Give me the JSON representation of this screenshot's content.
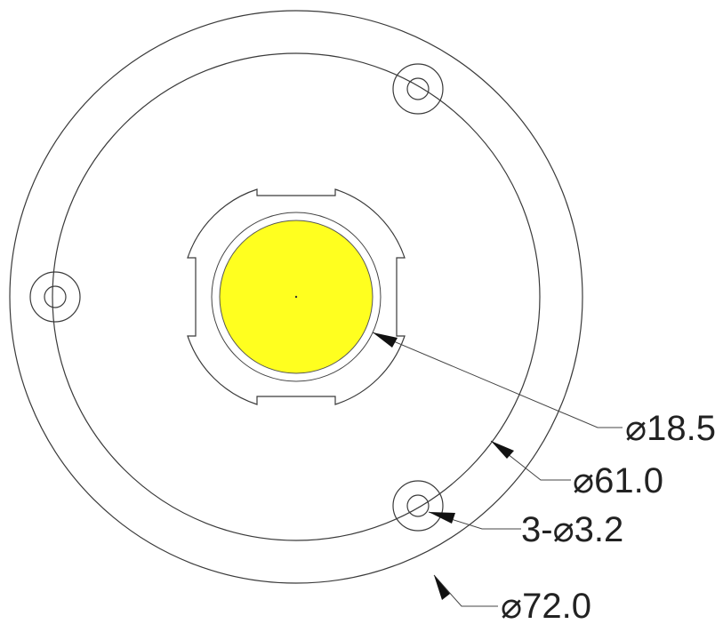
{
  "colors": {
    "background": "#ffffff",
    "outline": "#3a3a3a",
    "led_emitter": "#ffff1f",
    "text": "#222222"
  },
  "dimensions": {
    "led_diameter": "⌀18.5",
    "inner_circle_diameter": "⌀61.0",
    "mounting_holes": "3-⌀3.2",
    "outer_diameter": "⌀72.0"
  }
}
